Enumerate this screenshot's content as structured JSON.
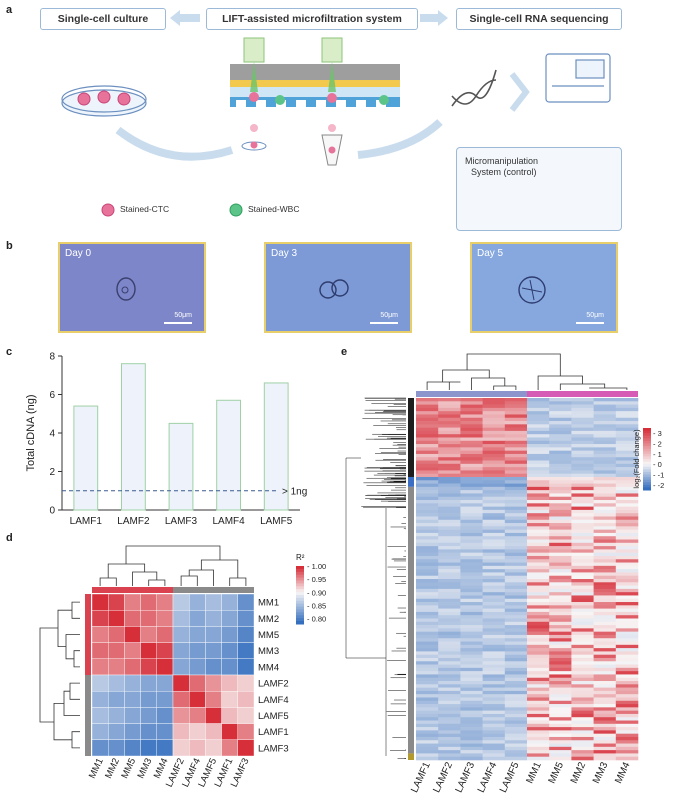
{
  "panels": {
    "a": "a",
    "b": "b",
    "c": "c",
    "d": "d",
    "e": "e"
  },
  "panel_a": {
    "left_box": "Single-cell culture",
    "center_box": "LIFT-assisted microfiltration system",
    "right_box": "Single-cell RNA sequencing",
    "micro_line1": "Micromanipulation",
    "micro_line2": "System (control)",
    "legend_ctc": "Stained-CTC",
    "legend_wbc": "Stained-WBC",
    "colors": {
      "ctc": "#e8739a",
      "wbc": "#5cc489",
      "box_border": "#9db9d8",
      "arrow": "#c9dcee"
    }
  },
  "panel_b": {
    "images": [
      {
        "day": "Day 0",
        "scale": "50μm",
        "color": "#7d86c8"
      },
      {
        "day": "Day 3",
        "scale": "50μm",
        "color": "#7d9ad6"
      },
      {
        "day": "Day 5",
        "scale": "50μm",
        "color": "#86a8df"
      }
    ]
  },
  "chart_data": [
    {
      "type": "bar",
      "panel": "c",
      "categories": [
        "LAMF1",
        "LAMF2",
        "LAMF3",
        "LAMF4",
        "LAMF5"
      ],
      "values": [
        5.4,
        7.6,
        4.5,
        5.7,
        6.6
      ],
      "ylabel": "Total cDNA (ng)",
      "yticks": [
        "0",
        "2",
        "4",
        "6",
        "8"
      ],
      "ylim": [
        0,
        8
      ],
      "threshold": {
        "value": 1,
        "label": "> 1ng"
      },
      "colors": {
        "bar_fill": "#eef3fb",
        "bar_edge": "#9fd0a6",
        "threshold": "#3a5b92"
      }
    },
    {
      "type": "heatmap",
      "panel": "d",
      "rows": [
        "MM1",
        "MM2",
        "MM5",
        "MM3",
        "MM4",
        "LAMF2",
        "LAMF4",
        "LAMF5",
        "LAMF1",
        "LAMF3"
      ],
      "cols": [
        "MM1",
        "MM2",
        "MM5",
        "MM3",
        "MM4",
        "LAMF2",
        "LAMF4",
        "LAMF5",
        "LAMF1",
        "LAMF3"
      ],
      "values": [
        [
          1.0,
          0.99,
          0.96,
          0.97,
          0.96,
          0.86,
          0.84,
          0.85,
          0.84,
          0.81
        ],
        [
          0.99,
          1.0,
          0.97,
          0.97,
          0.96,
          0.85,
          0.83,
          0.84,
          0.83,
          0.81
        ],
        [
          0.96,
          0.97,
          1.0,
          0.96,
          0.97,
          0.84,
          0.83,
          0.83,
          0.82,
          0.8
        ],
        [
          0.97,
          0.97,
          0.96,
          1.0,
          0.99,
          0.83,
          0.82,
          0.82,
          0.81,
          0.79
        ],
        [
          0.96,
          0.96,
          0.97,
          0.99,
          1.0,
          0.83,
          0.82,
          0.81,
          0.81,
          0.79
        ],
        [
          0.86,
          0.85,
          0.84,
          0.83,
          0.83,
          1.0,
          0.97,
          0.95,
          0.93,
          0.92
        ],
        [
          0.84,
          0.83,
          0.83,
          0.82,
          0.82,
          0.97,
          1.0,
          0.96,
          0.92,
          0.93
        ],
        [
          0.85,
          0.84,
          0.83,
          0.82,
          0.81,
          0.95,
          0.96,
          1.0,
          0.93,
          0.92
        ],
        [
          0.84,
          0.83,
          0.82,
          0.81,
          0.81,
          0.93,
          0.92,
          0.93,
          1.0,
          0.96
        ],
        [
          0.81,
          0.81,
          0.8,
          0.79,
          0.79,
          0.92,
          0.93,
          0.92,
          0.96,
          1.0
        ]
      ],
      "legend_title": "R²",
      "legend_ticks": [
        "1.00",
        "0.95",
        "0.90",
        "0.85",
        "0.80"
      ],
      "vmin": 0.78,
      "vmax": 1.0,
      "group_colors": {
        "MM": "#d9424e",
        "LAMF": "#8a8a8a"
      }
    },
    {
      "type": "heatmap",
      "panel": "e",
      "cols": [
        "LAMF1",
        "LAMF2",
        "LAMF3",
        "LAMF4",
        "LAMF5",
        "MM1",
        "MM5",
        "MM2",
        "MM3",
        "MM4"
      ],
      "legend_title": "log₂(Fold change)",
      "legend_ticks": [
        "3",
        "2",
        "1",
        "0",
        "-1",
        "-2"
      ],
      "vmin": -2.5,
      "vmax": 3.5,
      "group_colors": {
        "LAMF": "#8c95cc",
        "MM": "#d65bb5"
      }
    }
  ]
}
